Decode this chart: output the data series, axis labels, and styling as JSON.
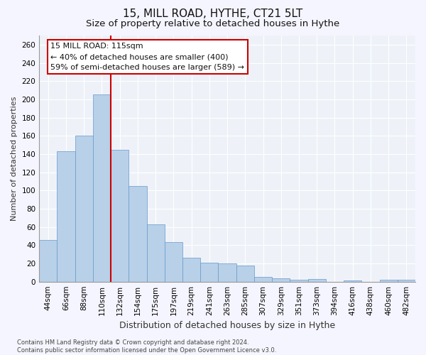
{
  "title1": "15, MILL ROAD, HYTHE, CT21 5LT",
  "title2": "Size of property relative to detached houses in Hythe",
  "xlabel": "Distribution of detached houses by size in Hythe",
  "ylabel": "Number of detached properties",
  "footnote": "Contains HM Land Registry data © Crown copyright and database right 2024.\nContains public sector information licensed under the Open Government Licence v3.0.",
  "bin_labels": [
    "44sqm",
    "66sqm",
    "88sqm",
    "110sqm",
    "132sqm",
    "154sqm",
    "175sqm",
    "197sqm",
    "219sqm",
    "241sqm",
    "263sqm",
    "285sqm",
    "307sqm",
    "329sqm",
    "351sqm",
    "373sqm",
    "394sqm",
    "416sqm",
    "438sqm",
    "460sqm",
    "482sqm"
  ],
  "bar_values": [
    46,
    143,
    160,
    205,
    145,
    105,
    63,
    43,
    26,
    21,
    20,
    18,
    5,
    4,
    2,
    3,
    0,
    1,
    0,
    2,
    2
  ],
  "bar_color": "#b8d0e8",
  "bar_edge_color": "#6699cc",
  "vline_color": "#cc0000",
  "vline_x": 3.5,
  "annotation_text_line1": "15 MILL ROAD: 115sqm",
  "annotation_text_line2": "← 40% of detached houses are smaller (400)",
  "annotation_text_line3": "59% of semi-detached houses are larger (589) →",
  "ylim": [
    0,
    270
  ],
  "yticks": [
    0,
    20,
    40,
    60,
    80,
    100,
    120,
    140,
    160,
    180,
    200,
    220,
    240,
    260
  ],
  "background_color": "#eef2f8",
  "grid_color": "#ffffff",
  "fig_bg": "#f5f5ff",
  "title1_fontsize": 11,
  "title2_fontsize": 9.5,
  "xlabel_fontsize": 9,
  "ylabel_fontsize": 8,
  "tick_fontsize": 7.5,
  "annotation_fontsize": 8,
  "footnote_fontsize": 6
}
